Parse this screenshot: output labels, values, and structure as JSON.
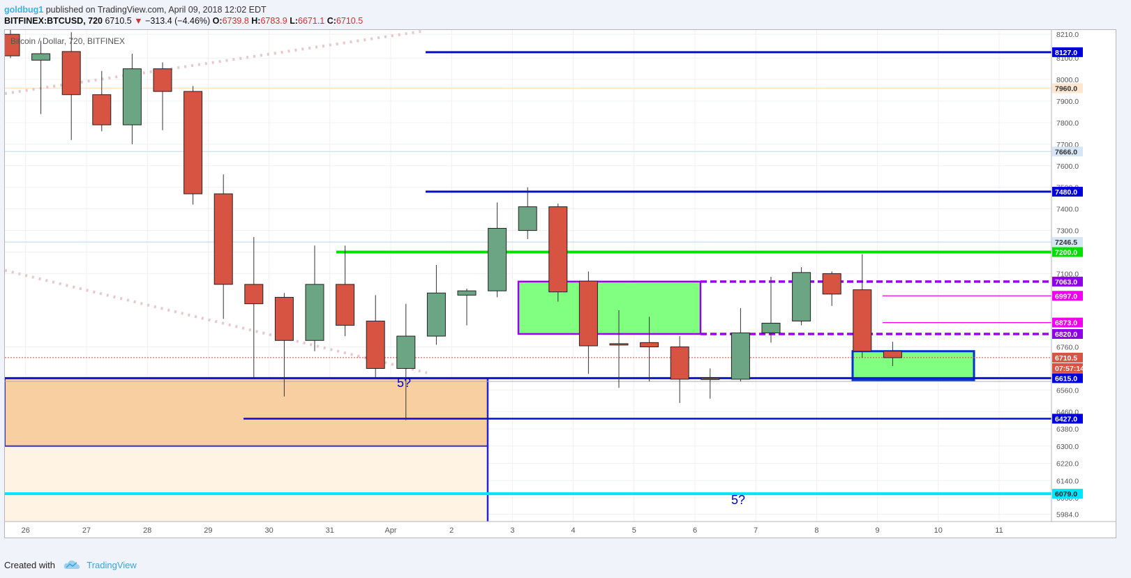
{
  "header": {
    "author": "goldbug1",
    "published": "published on TradingView.com, April 09, 2018 12:02 EDT",
    "symbol": "BITFINEX:BTCUSD, 720",
    "last": "6710.5",
    "change_arrow": "▼",
    "change": "−313.4 (−4.46%)",
    "o_label": "O:",
    "o": "6739.8",
    "h_label": "H:",
    "h": "6783.9",
    "l_label": "L:",
    "l": "6671.1",
    "c_label": "C:",
    "c": "6710.5"
  },
  "footer": {
    "created": "Created with",
    "brand": "TradingView"
  },
  "colors": {
    "up": "#6ba583",
    "down": "#d75442",
    "wick": "#333333",
    "blue": "#0000ee",
    "green": "#00e000",
    "purple": "#9900ee",
    "magenta": "#ee00ee",
    "cyan": "#00e5ff",
    "zone_green": "#80ff80",
    "zone_orange": "#f8cfa0",
    "zone_light": "#fff4e3"
  },
  "chart_data": {
    "type": "candlestick",
    "title": "Bitcoin / Dollar, 720, BITFINEX",
    "ylim": [
      5950,
      8230
    ],
    "y_ticks": [
      5984,
      6060,
      6140,
      6220,
      6300,
      6380,
      6460,
      6560,
      6760,
      7100,
      7200,
      7300,
      7400,
      7500,
      7600,
      7700,
      7800,
      7900,
      8000,
      8100,
      8210
    ],
    "x_ticks": [
      {
        "label": "26",
        "i": 0.5
      },
      {
        "label": "27",
        "i": 2.5
      },
      {
        "label": "28",
        "i": 4.5
      },
      {
        "label": "29",
        "i": 6.5
      },
      {
        "label": "30",
        "i": 8.5
      },
      {
        "label": "31",
        "i": 10.5
      },
      {
        "label": "Apr",
        "i": 12.5
      },
      {
        "label": "2",
        "i": 14.5
      },
      {
        "label": "3",
        "i": 16.5
      },
      {
        "label": "4",
        "i": 18.5
      },
      {
        "label": "5",
        "i": 20.5
      },
      {
        "label": "6",
        "i": 22.5
      },
      {
        "label": "7",
        "i": 24.5
      },
      {
        "label": "8",
        "i": 26.5
      },
      {
        "label": "9",
        "i": 28.5
      },
      {
        "label": "10",
        "i": 30.5
      },
      {
        "label": "11",
        "i": 32.5
      }
    ],
    "candles": [
      {
        "o": 8210,
        "h": 8230,
        "l": 8100,
        "c": 8110
      },
      {
        "o": 8090,
        "h": 8180,
        "l": 7840,
        "c": 8120
      },
      {
        "o": 8130,
        "h": 8220,
        "l": 7720,
        "c": 7930
      },
      {
        "o": 7930,
        "h": 8040,
        "l": 7760,
        "c": 7790
      },
      {
        "o": 7790,
        "h": 8120,
        "l": 7700,
        "c": 8050
      },
      {
        "o": 8050,
        "h": 8080,
        "l": 7765,
        "c": 7945
      },
      {
        "o": 7945,
        "h": 7970,
        "l": 7420,
        "c": 7470
      },
      {
        "o": 7470,
        "h": 7560,
        "l": 6890,
        "c": 7050
      },
      {
        "o": 7050,
        "h": 7270,
        "l": 6620,
        "c": 6960
      },
      {
        "o": 6990,
        "h": 7010,
        "l": 6530,
        "c": 6790
      },
      {
        "o": 6790,
        "h": 7230,
        "l": 6740,
        "c": 7050
      },
      {
        "o": 7050,
        "h": 7230,
        "l": 6810,
        "c": 6860
      },
      {
        "o": 6880,
        "h": 7000,
        "l": 6620,
        "c": 6660
      },
      {
        "o": 6660,
        "h": 6960,
        "l": 6420,
        "c": 6810
      },
      {
        "o": 6810,
        "h": 7140,
        "l": 6770,
        "c": 7010
      },
      {
        "o": 7000,
        "h": 7030,
        "l": 6860,
        "c": 7020
      },
      {
        "o": 7020,
        "h": 7430,
        "l": 6990,
        "c": 7310
      },
      {
        "o": 7300,
        "h": 7500,
        "l": 7260,
        "c": 7410
      },
      {
        "o": 7410,
        "h": 7425,
        "l": 6970,
        "c": 7015
      },
      {
        "o": 7065,
        "h": 7110,
        "l": 6635,
        "c": 6765
      },
      {
        "o": 6775,
        "h": 6930,
        "l": 6570,
        "c": 6770
      },
      {
        "o": 6780,
        "h": 6900,
        "l": 6600,
        "c": 6760
      },
      {
        "o": 6760,
        "h": 6810,
        "l": 6500,
        "c": 6610
      },
      {
        "o": 6615,
        "h": 6660,
        "l": 6520,
        "c": 6610
      },
      {
        "o": 6610,
        "h": 6940,
        "l": 6600,
        "c": 6825
      },
      {
        "o": 6825,
        "h": 7085,
        "l": 6780,
        "c": 6870
      },
      {
        "o": 6880,
        "h": 7130,
        "l": 6860,
        "c": 7105
      },
      {
        "o": 7100,
        "h": 7110,
        "l": 6950,
        "c": 7005
      },
      {
        "o": 7025,
        "h": 7190,
        "l": 6710,
        "c": 6740
      },
      {
        "o": 6740,
        "h": 6784,
        "l": 6671,
        "c": 6710
      }
    ],
    "levels": [
      {
        "label": "8127.0",
        "value": 8127,
        "style": "blue"
      },
      {
        "label": "7960.0",
        "value": 7960,
        "style": "peach"
      },
      {
        "label": "7666.0",
        "value": 7666,
        "style": "ltblue"
      },
      {
        "label": "7480.0",
        "value": 7480,
        "style": "blue"
      },
      {
        "label": "7246.5",
        "value": 7246.5,
        "style": "ltblue"
      },
      {
        "label": "7200.0",
        "value": 7200,
        "style": "green"
      },
      {
        "label": "7063.0",
        "value": 7063,
        "style": "purple"
      },
      {
        "label": "6997.0",
        "value": 6997,
        "style": "magenta"
      },
      {
        "label": "6873.0",
        "value": 6873,
        "style": "magenta"
      },
      {
        "label": "6820.0",
        "value": 6820,
        "style": "purple"
      },
      {
        "label": "6710.5",
        "value": 6710.5,
        "style": "price"
      },
      {
        "label": "07:57:14",
        "value": 6660,
        "style": "timer"
      },
      {
        "label": "6615.0",
        "value": 6615,
        "style": "blue"
      },
      {
        "label": "6427.0",
        "value": 6427,
        "style": "blue"
      },
      {
        "label": "6079.0",
        "value": 6079,
        "style": "cyan"
      }
    ],
    "annotations": [
      "5?",
      "5?"
    ]
  }
}
